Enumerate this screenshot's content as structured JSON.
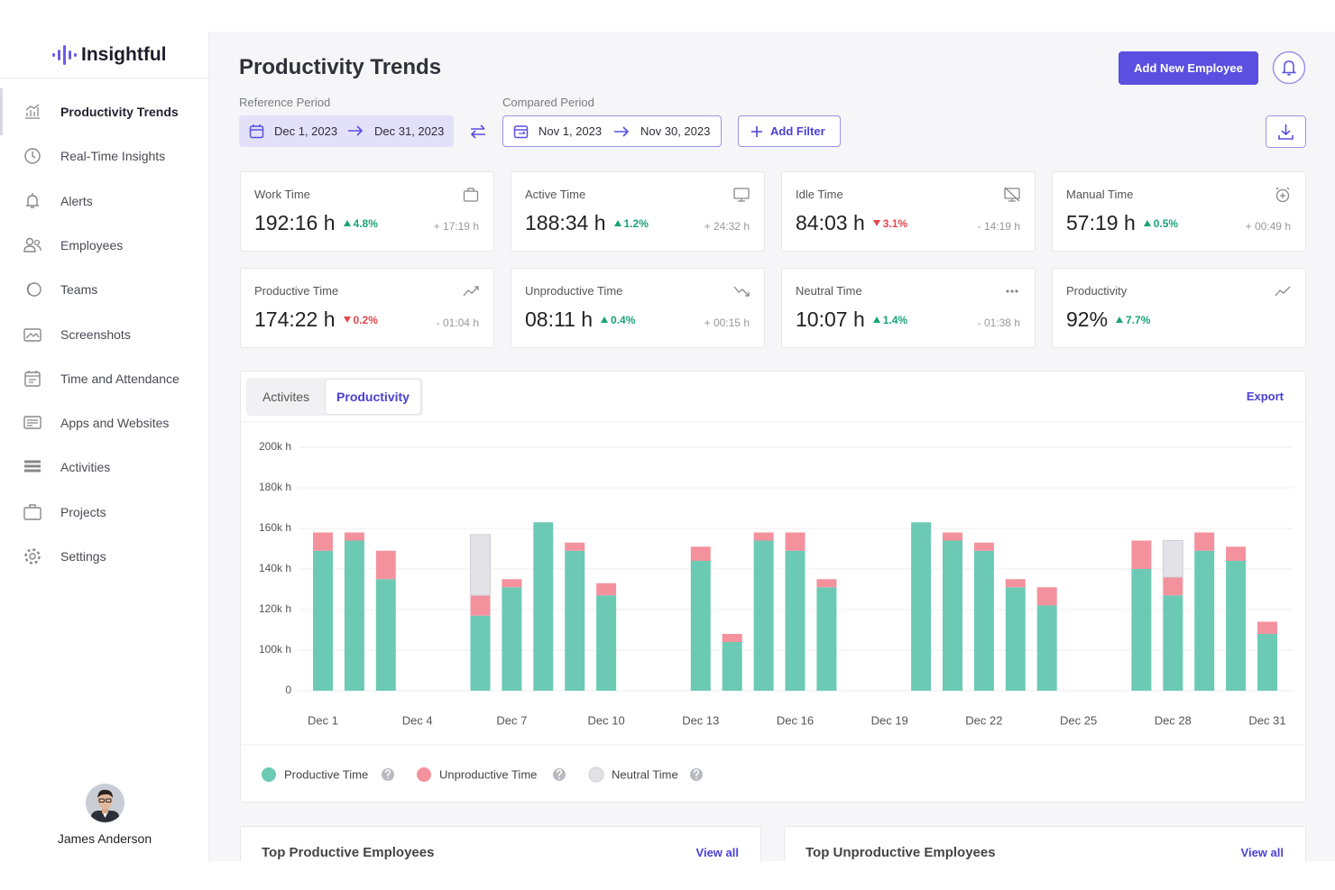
{
  "sidebar": {
    "logo": "Insightful",
    "active": 0,
    "nav": [
      "Productivity Trends",
      "Real-Time Insights",
      "Alerts",
      "Employees",
      "Teams",
      "Screenshots",
      "Time and Attendance",
      "Apps and Websites",
      "Activities",
      "Projects",
      "Settings"
    ],
    "user": "James Anderson"
  },
  "header": {
    "title": "Productivity Trends",
    "add_button": "Add New Employee"
  },
  "filters": {
    "reference": {
      "label": "Reference Period",
      "start": "Dec 1, 2023",
      "end": "Dec 31, 2023"
    },
    "compared": {
      "label": "Compared Period",
      "start": "Nov 1, 2023",
      "end": "Nov 30, 2023"
    },
    "add_filter": "Add Filter"
  },
  "metrics": [
    {
      "label": "Work Time",
      "value": "192:16 h",
      "change": "4.8%",
      "direction": "up",
      "diff": "+ 17:19 h"
    },
    {
      "label": "Active Time",
      "value": "188:34 h",
      "change": "1.2%",
      "direction": "up",
      "diff": "+ 24:32 h"
    },
    {
      "label": "Idle Time",
      "value": "84:03 h",
      "change": "3.1%",
      "direction": "down",
      "diff": "- 14:19 h"
    },
    {
      "label": "Manual Time",
      "value": "57:19 h",
      "change": "0.5%",
      "direction": "up",
      "diff": "+ 00:49 h"
    },
    {
      "label": "Productive Time",
      "value": "174:22 h",
      "change": "0.2%",
      "direction": "down",
      "diff": "- 01:04 h"
    },
    {
      "label": "Unproductive Time",
      "value": "08:11 h",
      "change": "0.4%",
      "direction": "up",
      "diff": "+ 00:15 h"
    },
    {
      "label": "Neutral Time",
      "value": "10:07 h",
      "change": "1.4%",
      "direction": "up",
      "diff": "- 01:38 h"
    },
    {
      "label": "Productivity",
      "value": "92%",
      "change": "7.7%",
      "direction": "up"
    }
  ],
  "chart_panel": {
    "tabs": [
      "Activites",
      "Productivity"
    ],
    "active_tab": 1,
    "export": "Export"
  },
  "chart_data": {
    "type": "stacked_bar",
    "categories": [
      "Dec 1",
      null,
      null,
      "Dec 4",
      null,
      null,
      "Dec 7",
      null,
      null,
      "Dec 10",
      null,
      null,
      "Dec 13",
      null,
      null,
      "Dec 16",
      null,
      null,
      "Dec 19",
      null,
      null,
      "Dec 22",
      null,
      null,
      "Dec 25",
      null,
      null,
      "Dec 28",
      null,
      null,
      "Dec 31"
    ],
    "series": [
      {
        "name": "Productive Time",
        "color": "#6ccab4",
        "values": [
          149000,
          154000,
          135000,
          null,
          null,
          117000,
          131000,
          163000,
          149000,
          127000,
          null,
          null,
          144000,
          104000,
          154000,
          149000,
          131000,
          null,
          null,
          163000,
          154000,
          149000,
          131000,
          122000,
          null,
          null,
          140000,
          127000,
          149000,
          144000,
          108000
        ]
      },
      {
        "name": "Unproductive Time",
        "color": "#f3929d",
        "values": [
          9000,
          4000,
          14000,
          null,
          null,
          10000,
          4000,
          null,
          4000,
          6000,
          null,
          null,
          7000,
          4000,
          4000,
          9000,
          4000,
          null,
          null,
          null,
          4000,
          4000,
          4000,
          9000,
          null,
          null,
          14000,
          9000,
          9000,
          7000,
          6000
        ]
      },
      {
        "name": "Neutral Time",
        "color": "#e3e3e7",
        "values": [
          null,
          null,
          null,
          null,
          null,
          30000,
          null,
          null,
          null,
          null,
          null,
          null,
          null,
          null,
          null,
          null,
          null,
          null,
          null,
          null,
          null,
          null,
          null,
          null,
          null,
          null,
          null,
          18000,
          null,
          null,
          null
        ]
      }
    ],
    "ylim": [
      0,
      200000
    ],
    "yticks": [
      0,
      {
        "value": 100000,
        "label": "100k h"
      },
      {
        "value": 120000,
        "label": "120k h"
      },
      {
        "value": 140000,
        "label": "140k h"
      },
      {
        "value": 160000,
        "label": "160k h"
      },
      {
        "value": 180000,
        "label": "180k h"
      },
      {
        "value": 200000,
        "label": "200k h"
      }
    ],
    "grid": true,
    "legend": "bottom"
  },
  "lists": [
    {
      "title": "Top Productive Employees",
      "link": "View all"
    },
    {
      "title": "Top Unproductive Employees",
      "link": "View all"
    }
  ]
}
